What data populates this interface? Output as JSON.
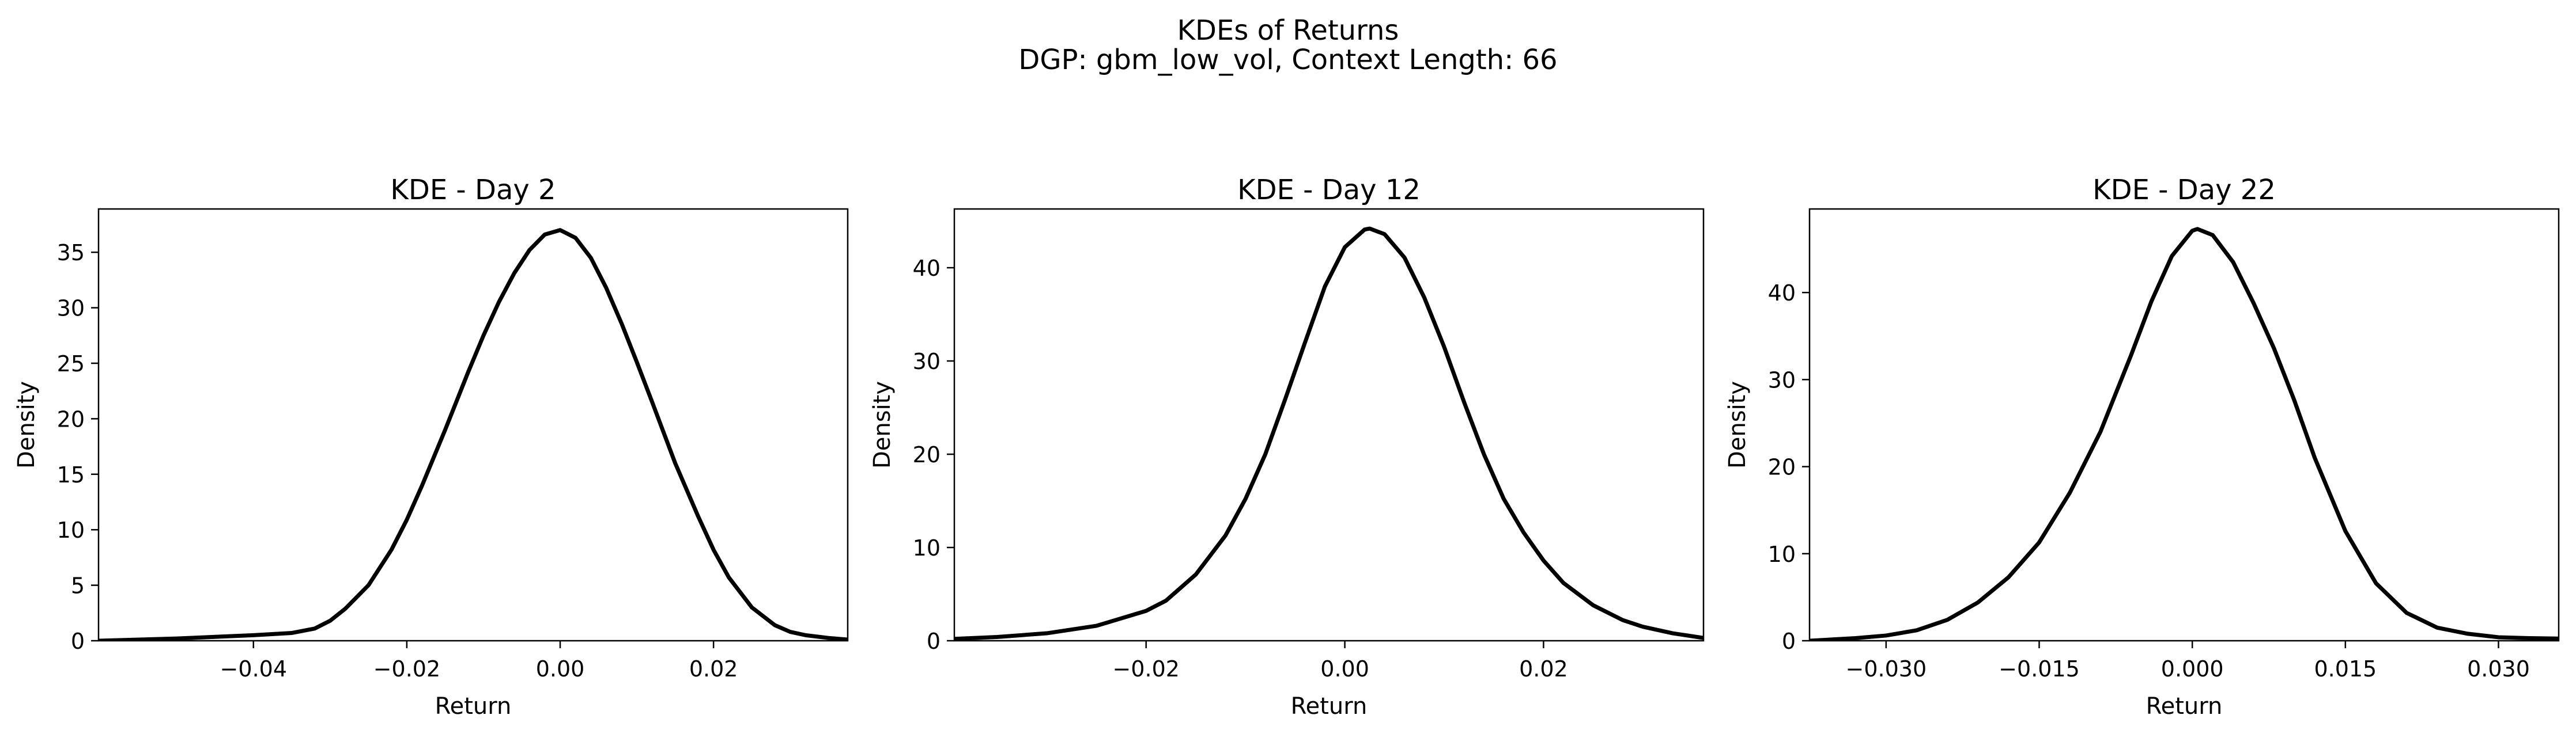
{
  "figure": {
    "title_line1": "KDEs of Returns",
    "title_line2": "DGP: gbm_low_vol, Context Length: 66"
  },
  "chart_data": [
    {
      "type": "line",
      "title": "KDE - Day 2",
      "xlabel": "Return",
      "ylabel": "Density",
      "xlim": [
        -0.0602,
        0.0375
      ],
      "ylim": [
        0,
        38.9
      ],
      "xticks": [
        -0.04,
        -0.02,
        0.0,
        0.02
      ],
      "xtick_labels": [
        "−0.04",
        "−0.02",
        "0.00",
        "0.02"
      ],
      "yticks": [
        0,
        5,
        10,
        15,
        20,
        25,
        30,
        35
      ],
      "ytick_labels": [
        "0",
        "5",
        "10",
        "15",
        "20",
        "25",
        "30",
        "35"
      ],
      "line_color": "#000000",
      "series": [
        {
          "x": [
            -0.0602,
            -0.05,
            -0.045,
            -0.04,
            -0.035,
            -0.032,
            -0.03,
            -0.028,
            -0.025,
            -0.022,
            -0.02,
            -0.018,
            -0.015,
            -0.012,
            -0.01,
            -0.008,
            -0.006,
            -0.004,
            -0.002,
            0.0,
            0.002,
            0.004,
            0.006,
            0.008,
            0.01,
            0.012,
            0.015,
            0.018,
            0.02,
            0.022,
            0.025,
            0.028,
            0.03,
            0.032,
            0.035,
            0.0375
          ],
          "y": [
            0.0,
            0.2,
            0.35,
            0.5,
            0.7,
            1.1,
            1.8,
            2.9,
            5.0,
            8.2,
            10.9,
            14.0,
            19.0,
            24.2,
            27.5,
            30.5,
            33.1,
            35.2,
            36.6,
            37.0,
            36.3,
            34.5,
            31.8,
            28.6,
            25.1,
            21.5,
            16.0,
            11.2,
            8.2,
            5.7,
            3.0,
            1.4,
            0.8,
            0.5,
            0.25,
            0.1
          ]
        }
      ]
    },
    {
      "type": "line",
      "title": "KDE - Day 12",
      "xlabel": "Return",
      "ylabel": "Density",
      "xlim": [
        -0.0393,
        0.0361
      ],
      "ylim": [
        0,
        46.3
      ],
      "xticks": [
        -0.02,
        0.0,
        0.02
      ],
      "xtick_labels": [
        "−0.02",
        "0.00",
        "0.02"
      ],
      "yticks": [
        0,
        10,
        20,
        30,
        40
      ],
      "ytick_labels": [
        "0",
        "10",
        "20",
        "30",
        "40"
      ],
      "line_color": "#000000",
      "series": [
        {
          "x": [
            -0.0393,
            -0.035,
            -0.03,
            -0.025,
            -0.02,
            -0.018,
            -0.015,
            -0.012,
            -0.01,
            -0.008,
            -0.006,
            -0.004,
            -0.002,
            0.0,
            0.002,
            0.0025,
            0.004,
            0.006,
            0.008,
            0.01,
            0.012,
            0.014,
            0.016,
            0.018,
            0.02,
            0.022,
            0.025,
            0.028,
            0.03,
            0.033,
            0.0361
          ],
          "y": [
            0.2,
            0.4,
            0.8,
            1.6,
            3.2,
            4.3,
            7.1,
            11.3,
            15.2,
            20.0,
            25.9,
            32.0,
            38.0,
            42.2,
            44.1,
            44.2,
            43.6,
            41.1,
            36.8,
            31.5,
            25.6,
            20.0,
            15.2,
            11.6,
            8.6,
            6.2,
            3.8,
            2.2,
            1.5,
            0.8,
            0.3
          ]
        }
      ]
    },
    {
      "type": "line",
      "title": "KDE - Day 22",
      "xlabel": "Return",
      "ylabel": "Density",
      "xlim": [
        -0.0375,
        0.0359
      ],
      "ylim": [
        0,
        49.6
      ],
      "xticks": [
        -0.03,
        -0.015,
        0.0,
        0.015,
        0.03
      ],
      "xtick_labels": [
        "−0.030",
        "−0.015",
        "0.000",
        "0.015",
        "0.030"
      ],
      "yticks": [
        0,
        10,
        20,
        30,
        40
      ],
      "ytick_labels": [
        "0",
        "10",
        "20",
        "30",
        "40"
      ],
      "line_color": "#000000",
      "series": [
        {
          "x": [
            -0.0375,
            -0.033,
            -0.03,
            -0.027,
            -0.024,
            -0.021,
            -0.018,
            -0.015,
            -0.012,
            -0.009,
            -0.006,
            -0.004,
            -0.002,
            0.0,
            0.0005,
            0.002,
            0.004,
            0.006,
            0.008,
            0.01,
            0.012,
            0.015,
            0.018,
            0.021,
            0.024,
            0.027,
            0.03,
            0.033,
            0.0359
          ],
          "y": [
            0.0,
            0.3,
            0.6,
            1.2,
            2.4,
            4.4,
            7.3,
            11.3,
            17.0,
            24.0,
            32.8,
            39.0,
            44.2,
            47.1,
            47.3,
            46.6,
            43.5,
            38.8,
            33.6,
            27.6,
            21.0,
            12.6,
            6.6,
            3.2,
            1.5,
            0.8,
            0.4,
            0.3,
            0.25
          ]
        }
      ]
    }
  ]
}
